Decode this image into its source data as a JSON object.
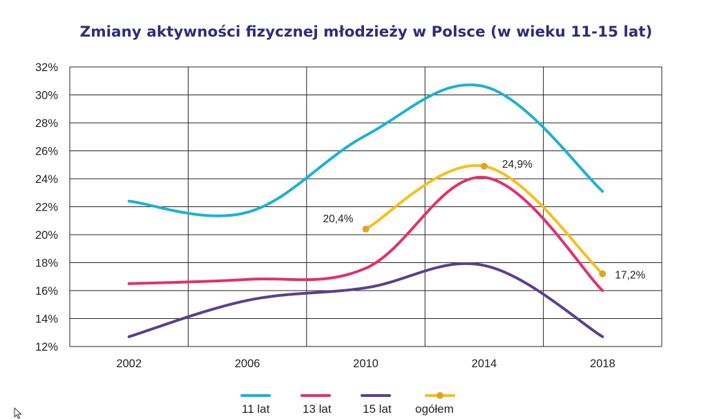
{
  "chart_data": {
    "type": "line",
    "title": "Zmiany aktywności fizycznej młodzieży w Polsce (w wieku 11-15 lat)",
    "xlabel": "",
    "ylabel": "",
    "x": [
      2002,
      2006,
      2010,
      2014,
      2018
    ],
    "x_tick_labels": [
      "2002",
      "2006",
      "2010",
      "2014",
      "2018"
    ],
    "xlim": [
      2000,
      2020
    ],
    "ylim": [
      12,
      32
    ],
    "y_ticks": [
      12,
      14,
      16,
      18,
      20,
      22,
      24,
      26,
      28,
      30,
      32
    ],
    "y_tick_labels": [
      "12%",
      "14%",
      "16%",
      "18%",
      "20%",
      "22%",
      "24%",
      "26%",
      "28%",
      "30%",
      "32%"
    ],
    "grid": true,
    "legend_position": "bottom",
    "series": [
      {
        "name": "11 lat",
        "color": "#1cb1d6",
        "marker": false,
        "x": [
          2002,
          2006,
          2010,
          2014,
          2018
        ],
        "values": [
          22.4,
          21.6,
          27.1,
          30.6,
          23.1
        ]
      },
      {
        "name": "13 lat",
        "color": "#e0306f",
        "marker": false,
        "x": [
          2002,
          2006,
          2010,
          2014,
          2018
        ],
        "values": [
          16.5,
          16.8,
          17.6,
          24.1,
          16.0
        ]
      },
      {
        "name": "15 lat",
        "color": "#5b3f8f",
        "marker": false,
        "x": [
          2002,
          2006,
          2010,
          2014,
          2018
        ],
        "values": [
          12.7,
          15.3,
          16.2,
          17.8,
          12.7
        ]
      },
      {
        "name": "ogółem",
        "color": "#f5bf1c",
        "marker": true,
        "x": [
          2010,
          2014,
          2018
        ],
        "values": [
          20.4,
          24.9,
          17.2
        ],
        "labels": [
          "20,4%",
          "24,9%",
          "17,2%"
        ]
      }
    ]
  },
  "colors": {
    "title": "#2e2d7a",
    "grid": "#222222",
    "marker": "#e0a424"
  },
  "icons": {
    "cursor": "mouse-pointer-icon"
  }
}
